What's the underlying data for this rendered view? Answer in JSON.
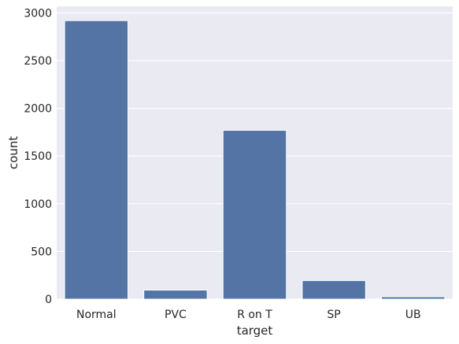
{
  "chart_data": {
    "type": "bar",
    "categories": [
      "Normal",
      "PVC",
      "R on T",
      "SP",
      "UB"
    ],
    "values": [
      2920,
      95,
      1770,
      195,
      25
    ],
    "xlabel": "target",
    "ylabel": "count",
    "ylim": [
      0,
      3070
    ],
    "yticks": [
      0,
      500,
      1000,
      1500,
      2000,
      2500,
      3000
    ],
    "grid": true,
    "colors": {
      "bar": "#5574a6",
      "plot_background": "#eaeaf2",
      "grid": "#ffffff",
      "text": "#262626"
    }
  }
}
